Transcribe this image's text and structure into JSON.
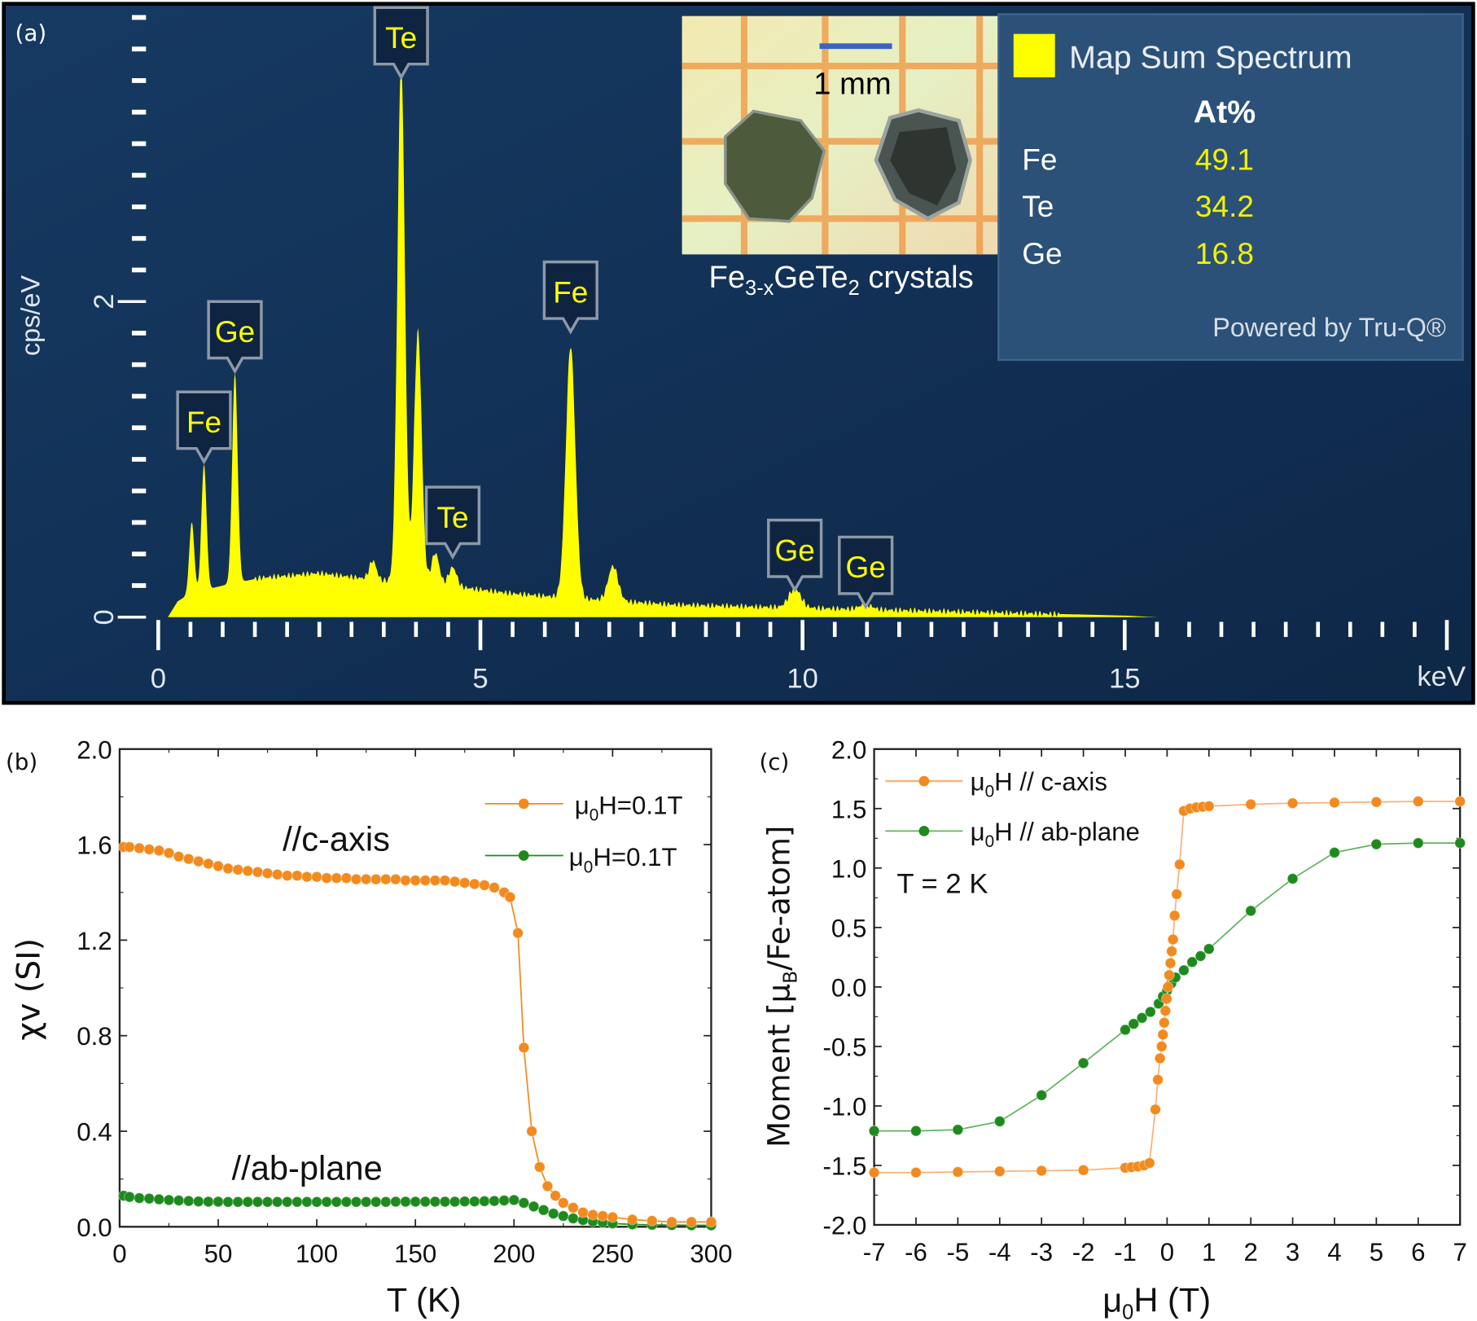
{
  "panel_labels": {
    "a": "(a)",
    "b": "(b)",
    "c": "(c)"
  },
  "colors": {
    "spectrum": "#ffff00",
    "panel_bg": "#143459",
    "results_bg": "#2c5178",
    "value_text": "#f2f200",
    "c_axis": "#f28a1e",
    "ab_plane": "#1e8a1e"
  },
  "inset": {
    "scale_bar_label": "1 mm",
    "caption_parts": [
      "Fe",
      "3-x",
      "GeTe",
      "2",
      " crystals"
    ]
  },
  "results": {
    "legend_label": "Map Sum Spectrum",
    "column_header": "At%",
    "rows": [
      {
        "element": "Fe",
        "value": "49.1"
      },
      {
        "element": "Te",
        "value": "34.2"
      },
      {
        "element": "Ge",
        "value": "16.8"
      }
    ],
    "footer": "Powered by Tru-Q®"
  },
  "chart_data": [
    {
      "type": "area",
      "panel": "a",
      "xlabel": "keV",
      "ylabel": "cps/eV",
      "xlim": [
        0,
        20
      ],
      "ylim": [
        0,
        3.8
      ],
      "x_ticks": [
        "0",
        "5",
        "10",
        "15"
      ],
      "y_ticks": [
        "0",
        "2"
      ],
      "background": {
        "x": [
          0.15,
          0.3,
          0.5,
          1.0,
          1.6,
          2.5,
          3.3,
          4.5,
          5.5,
          6.5,
          8,
          10,
          12,
          14,
          15,
          15.5
        ],
        "y": [
          0,
          0.1,
          0.15,
          0.2,
          0.25,
          0.28,
          0.24,
          0.2,
          0.15,
          0.12,
          0.08,
          0.06,
          0.04,
          0.02,
          0.01,
          0
        ]
      },
      "peaks": [
        {
          "label": "",
          "energy": 0.52,
          "height": 0.45
        },
        {
          "label": "Fe",
          "energy": 0.71,
          "height": 0.8
        },
        {
          "label": "Ge",
          "energy": 1.19,
          "height": 1.33
        },
        {
          "label": "",
          "energy": 3.33,
          "height": 0.12
        },
        {
          "label": "Te",
          "energy": 3.77,
          "height": 3.3
        },
        {
          "label": "",
          "energy": 4.03,
          "height": 1.6
        },
        {
          "label": "",
          "energy": 4.3,
          "height": 0.2
        },
        {
          "label": "Te",
          "energy": 4.57,
          "height": 0.12
        },
        {
          "label": "Fe",
          "energy": 6.4,
          "height": 1.6
        },
        {
          "label": "",
          "energy": 7.06,
          "height": 0.22
        },
        {
          "label": "Ge",
          "energy": 9.88,
          "height": 0.12
        },
        {
          "label": "Ge",
          "energy": 10.98,
          "height": 0.03
        }
      ]
    },
    {
      "type": "scatter",
      "panel": "b",
      "xlabel": "T (K)",
      "ylabel": "χv (SI)",
      "xlim": [
        0,
        300
      ],
      "ylim": [
        0,
        2.0
      ],
      "x_ticks": [
        "0",
        "50",
        "100",
        "150",
        "200",
        "250",
        "300"
      ],
      "y_ticks": [
        "0.0",
        "0.4",
        "0.8",
        "1.2",
        "1.6",
        "2.0"
      ],
      "annotations": [
        "//c-axis",
        "//ab-plane"
      ],
      "legend_position": "top-right",
      "series": [
        {
          "name": "μ0H=0.1T",
          "legend_parts": [
            "μ",
            "0",
            "H=0.1T"
          ],
          "color": "#f28a1e",
          "x": [
            2,
            5,
            10,
            15,
            20,
            25,
            30,
            35,
            40,
            45,
            50,
            55,
            60,
            65,
            70,
            75,
            80,
            85,
            90,
            95,
            100,
            105,
            110,
            115,
            120,
            125,
            130,
            135,
            140,
            145,
            150,
            155,
            160,
            165,
            170,
            175,
            180,
            185,
            190,
            195,
            198,
            202,
            205,
            209,
            213,
            217,
            221,
            225,
            230,
            235,
            240,
            245,
            250,
            260,
            270,
            280,
            290,
            300
          ],
          "y": [
            1.59,
            1.59,
            1.585,
            1.58,
            1.575,
            1.565,
            1.55,
            1.54,
            1.53,
            1.52,
            1.51,
            1.5,
            1.495,
            1.49,
            1.485,
            1.48,
            1.475,
            1.47,
            1.47,
            1.465,
            1.465,
            1.46,
            1.46,
            1.46,
            1.455,
            1.455,
            1.455,
            1.455,
            1.455,
            1.45,
            1.45,
            1.45,
            1.45,
            1.45,
            1.445,
            1.44,
            1.435,
            1.43,
            1.42,
            1.4,
            1.38,
            1.23,
            0.75,
            0.4,
            0.25,
            0.17,
            0.13,
            0.1,
            0.08,
            0.06,
            0.05,
            0.045,
            0.04,
            0.03,
            0.025,
            0.02,
            0.02,
            0.02
          ]
        },
        {
          "name": "μ0H=0.1T",
          "legend_parts": [
            "μ",
            "0",
            "H=0.1T"
          ],
          "color": "#1e8a1e",
          "x": [
            2,
            5,
            10,
            15,
            20,
            25,
            30,
            35,
            40,
            45,
            50,
            55,
            60,
            65,
            70,
            75,
            80,
            85,
            90,
            95,
            100,
            105,
            110,
            115,
            120,
            125,
            130,
            135,
            140,
            145,
            150,
            155,
            160,
            165,
            170,
            175,
            180,
            185,
            190,
            195,
            200,
            205,
            210,
            215,
            220,
            225,
            230,
            235,
            240,
            245,
            250,
            260,
            270,
            280,
            290,
            300
          ],
          "y": [
            0.13,
            0.125,
            0.12,
            0.118,
            0.115,
            0.112,
            0.11,
            0.108,
            0.106,
            0.105,
            0.105,
            0.104,
            0.104,
            0.104,
            0.104,
            0.104,
            0.104,
            0.104,
            0.104,
            0.104,
            0.104,
            0.104,
            0.104,
            0.104,
            0.104,
            0.104,
            0.104,
            0.104,
            0.105,
            0.105,
            0.105,
            0.105,
            0.105,
            0.105,
            0.105,
            0.106,
            0.106,
            0.107,
            0.108,
            0.11,
            0.112,
            0.1,
            0.085,
            0.07,
            0.055,
            0.045,
            0.035,
            0.028,
            0.022,
            0.018,
            0.014,
            0.01,
            0.008,
            0.007,
            0.006,
            0.006
          ]
        }
      ]
    },
    {
      "type": "line",
      "panel": "c",
      "xlabel": "μ0H (T)",
      "xlabel_parts": [
        "μ",
        "0",
        "H (T)"
      ],
      "ylabel": "Moment [μB/Fe-atom]",
      "ylabel_parts": [
        "Moment [μ",
        "B",
        "/Fe-atom]"
      ],
      "xlim": [
        -7,
        7
      ],
      "ylim": [
        -2.0,
        2.0
      ],
      "x_ticks": [
        "-7",
        "-6",
        "-5",
        "-4",
        "-3",
        "-2",
        "-1",
        "0",
        "1",
        "2",
        "3",
        "4",
        "5",
        "6",
        "7"
      ],
      "y_ticks": [
        "-2.0",
        "-1.5",
        "-1.0",
        "-0.5",
        "0.0",
        "0.5",
        "1.0",
        "1.5",
        "2.0"
      ],
      "annotation": "T = 2 K",
      "legend_position": "top-left",
      "series": [
        {
          "name": "μ0H // c-axis",
          "legend_parts": [
            "μ",
            "0",
            "H // c-axis"
          ],
          "color": "#f28a1e",
          "x": [
            -7,
            -6,
            -5,
            -4,
            -3,
            -2,
            -1,
            -0.85,
            -0.7,
            -0.55,
            -0.42,
            -0.28,
            -0.22,
            -0.17,
            -0.13,
            -0.1,
            -0.07,
            -0.04,
            -0.01,
            0.02,
            0.05,
            0.08,
            0.11,
            0.14,
            0.18,
            0.23,
            0.3,
            0.4,
            0.55,
            0.7,
            0.85,
            1,
            2,
            3,
            4,
            5,
            6,
            7
          ],
          "y": [
            -1.56,
            -1.56,
            -1.555,
            -1.55,
            -1.545,
            -1.54,
            -1.52,
            -1.515,
            -1.51,
            -1.5,
            -1.48,
            -1.03,
            -0.78,
            -0.6,
            -0.5,
            -0.4,
            -0.3,
            -0.2,
            -0.1,
            0.0,
            0.1,
            0.2,
            0.3,
            0.4,
            0.6,
            0.78,
            1.03,
            1.48,
            1.5,
            1.51,
            1.515,
            1.52,
            1.535,
            1.545,
            1.55,
            1.555,
            1.56,
            1.56
          ]
        },
        {
          "name": "μ0H // ab-plane",
          "legend_parts": [
            "μ",
            "0",
            "H // ab-plane"
          ],
          "color": "#1e8a1e",
          "x": [
            -7,
            -6,
            -5,
            -4,
            -3,
            -2,
            -1,
            -0.8,
            -0.6,
            -0.4,
            -0.2,
            -0.1,
            0,
            0.1,
            0.2,
            0.4,
            0.6,
            0.8,
            1,
            2,
            3,
            4,
            5,
            6,
            7
          ],
          "y": [
            -1.21,
            -1.21,
            -1.2,
            -1.13,
            -0.91,
            -0.64,
            -0.36,
            -0.31,
            -0.26,
            -0.21,
            -0.14,
            -0.08,
            -0.03,
            0.03,
            0.08,
            0.14,
            0.21,
            0.26,
            0.32,
            0.64,
            0.91,
            1.13,
            1.2,
            1.21,
            1.21
          ]
        }
      ]
    }
  ]
}
